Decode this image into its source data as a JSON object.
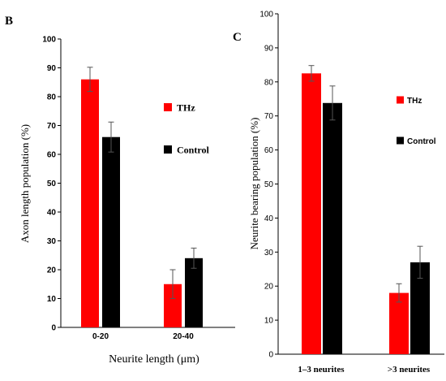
{
  "chart_data": [
    {
      "panel_label": "B",
      "type": "bar",
      "categories": [
        "0-20",
        "20-40"
      ],
      "series": [
        {
          "name": "THz",
          "values": [
            86,
            15
          ],
          "errors": [
            4.2,
            5.0
          ],
          "color": "#ff0000"
        },
        {
          "name": "Control",
          "values": [
            66,
            24
          ],
          "errors": [
            5.2,
            3.5
          ],
          "color": "#000000"
        }
      ],
      "xlabel": "Neurite length (μm)",
      "ylabel": "Axon length population  (%)",
      "ylim": [
        0,
        100
      ],
      "yticks": [
        "0",
        "10",
        "20",
        "30",
        "40",
        "50",
        "60",
        "70",
        "80",
        "90",
        "100"
      ],
      "grid": false,
      "legend_position": "right"
    },
    {
      "panel_label": "C",
      "type": "bar",
      "categories": [
        "1–3 neurites",
        ">3 neurites"
      ],
      "series": [
        {
          "name": "THz",
          "values": [
            82.5,
            18
          ],
          "errors": [
            2.3,
            2.7
          ],
          "color": "#ff0000"
        },
        {
          "name": "Control",
          "values": [
            73.8,
            27
          ],
          "errors": [
            5.0,
            4.7
          ],
          "color": "#000000"
        }
      ],
      "xlabel": "",
      "ylabel": "Neurite bearing population  (%)",
      "ylim": [
        0,
        100
      ],
      "yticks": [
        "0",
        "10",
        "20",
        "30",
        "40",
        "50",
        "60",
        "70",
        "80",
        "90",
        "100"
      ],
      "grid": false,
      "legend_position": "right"
    }
  ]
}
